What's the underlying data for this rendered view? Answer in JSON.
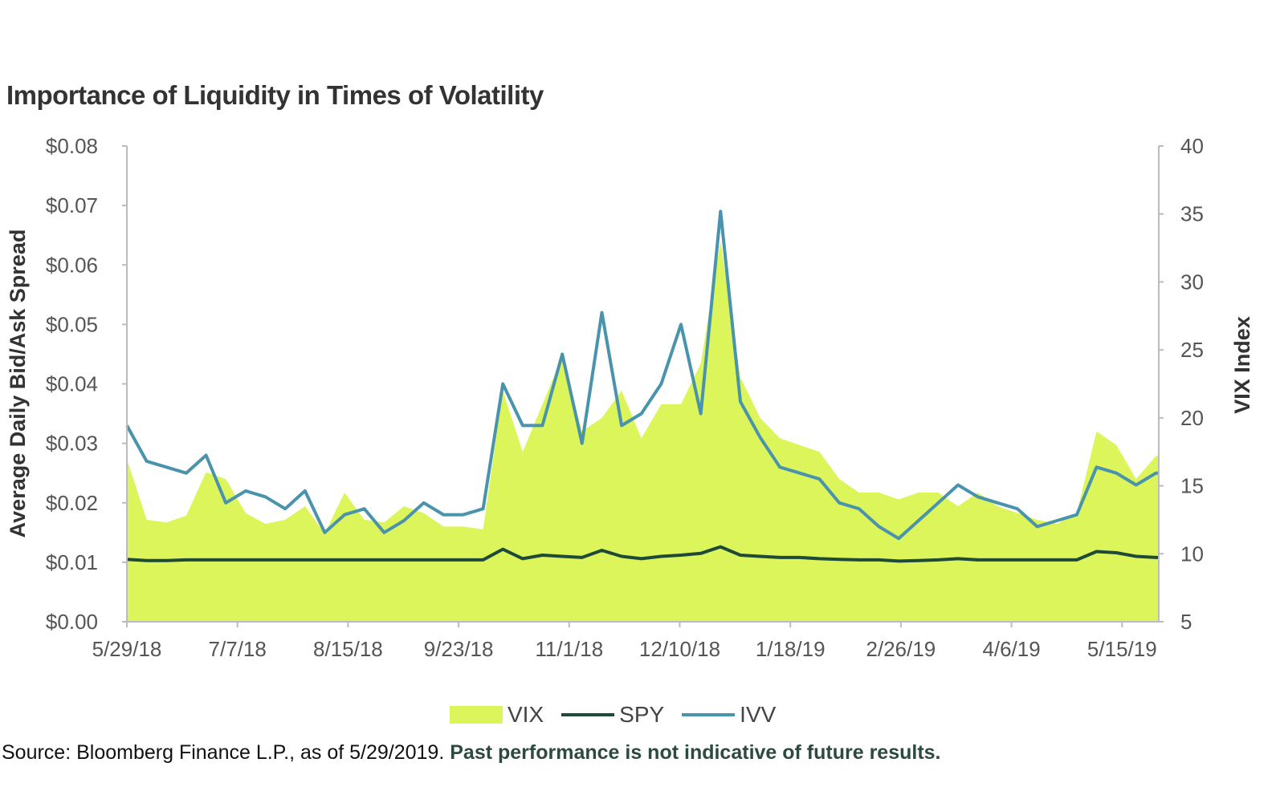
{
  "title": "Importance of Liquidity in Times of Volatility",
  "source": {
    "text": "Source: Bloomberg Finance L.P., as of 5/29/2019.",
    "disclaimer": "Past performance is not indicative of future results."
  },
  "chart_data": {
    "type": "line",
    "title": "Importance of Liquidity in Times of Volatility",
    "xlabel": "",
    "ylabel": "Average Daily Bid/Ask Spread",
    "y2label": "VIX Index",
    "ylim": [
      0,
      0.08
    ],
    "y2lim": [
      5,
      40
    ],
    "yticks": [
      "$0.00",
      "$0.01",
      "$0.02",
      "$0.03",
      "$0.04",
      "$0.05",
      "$0.06",
      "$0.07",
      "$0.08"
    ],
    "y2ticks": [
      "5",
      "10",
      "15",
      "20",
      "25",
      "30",
      "35",
      "40"
    ],
    "xticks": [
      "5/29/18",
      "7/7/18",
      "8/15/18",
      "9/23/18",
      "11/1/18",
      "12/10/18",
      "1/18/19",
      "2/26/19",
      "4/6/19",
      "5/15/19"
    ],
    "xrange": [
      "2018-05-29",
      "2019-05-29"
    ],
    "grid": false,
    "legend": "bottom",
    "x": [
      "2018-05-29",
      "2018-06-05",
      "2018-06-12",
      "2018-06-19",
      "2018-06-26",
      "2018-07-03",
      "2018-07-10",
      "2018-07-17",
      "2018-07-24",
      "2018-07-31",
      "2018-08-07",
      "2018-08-14",
      "2018-08-21",
      "2018-08-28",
      "2018-09-04",
      "2018-09-11",
      "2018-09-18",
      "2018-09-25",
      "2018-10-02",
      "2018-10-09",
      "2018-10-16",
      "2018-10-23",
      "2018-10-30",
      "2018-11-06",
      "2018-11-13",
      "2018-11-20",
      "2018-11-27",
      "2018-12-04",
      "2018-12-11",
      "2018-12-18",
      "2018-12-25",
      "2019-01-01",
      "2019-01-08",
      "2019-01-15",
      "2019-01-22",
      "2019-01-29",
      "2019-02-05",
      "2019-02-12",
      "2019-02-19",
      "2019-02-26",
      "2019-03-05",
      "2019-03-12",
      "2019-03-19",
      "2019-03-26",
      "2019-04-02",
      "2019-04-09",
      "2019-04-16",
      "2019-04-23",
      "2019-04-30",
      "2019-05-07",
      "2019-05-14",
      "2019-05-21",
      "2019-05-28"
    ],
    "series": [
      {
        "name": "VIX",
        "axis": "right",
        "kind": "area",
        "color": "#dcf55a",
        "values": [
          17.0,
          12.5,
          12.3,
          12.8,
          16.0,
          15.5,
          13.0,
          12.2,
          12.5,
          13.5,
          11.5,
          14.5,
          12.5,
          12.3,
          13.5,
          13.0,
          12.0,
          12.0,
          11.8,
          22.0,
          17.5,
          21.0,
          24.5,
          19.0,
          20.0,
          22.0,
          18.5,
          21.0,
          21.0,
          24.0,
          33.0,
          23.0,
          20.0,
          18.5,
          18.0,
          17.5,
          15.5,
          14.5,
          14.5,
          14.0,
          14.5,
          14.5,
          13.5,
          14.5,
          13.5,
          13.0,
          12.5,
          12.2,
          13.0,
          19.0,
          18.0,
          15.5,
          17.2
        ]
      },
      {
        "name": "SPY",
        "axis": "left",
        "kind": "line",
        "color": "#1f4a3a",
        "values": [
          0.0105,
          0.0103,
          0.0103,
          0.0104,
          0.0104,
          0.0104,
          0.0104,
          0.0104,
          0.0104,
          0.0104,
          0.0104,
          0.0104,
          0.0104,
          0.0104,
          0.0104,
          0.0104,
          0.0104,
          0.0104,
          0.0104,
          0.0122,
          0.0106,
          0.0112,
          0.011,
          0.0108,
          0.012,
          0.011,
          0.0106,
          0.011,
          0.0112,
          0.0115,
          0.0126,
          0.0112,
          0.011,
          0.0108,
          0.0108,
          0.0106,
          0.0105,
          0.0104,
          0.0104,
          0.0102,
          0.0103,
          0.0104,
          0.0106,
          0.0104,
          0.0104,
          0.0104,
          0.0104,
          0.0104,
          0.0104,
          0.0118,
          0.0116,
          0.011,
          0.0108
        ]
      },
      {
        "name": "IVV",
        "axis": "left",
        "kind": "line",
        "color": "#4a93ad",
        "values": [
          0.033,
          0.027,
          0.026,
          0.025,
          0.028,
          0.02,
          0.022,
          0.021,
          0.019,
          0.022,
          0.015,
          0.018,
          0.019,
          0.015,
          0.017,
          0.02,
          0.018,
          0.018,
          0.019,
          0.04,
          0.033,
          0.033,
          0.045,
          0.03,
          0.052,
          0.033,
          0.035,
          0.04,
          0.05,
          0.035,
          0.069,
          0.037,
          0.031,
          0.026,
          0.025,
          0.024,
          0.02,
          0.019,
          0.016,
          0.014,
          0.017,
          0.02,
          0.023,
          0.021,
          0.02,
          0.019,
          0.016,
          0.017,
          0.018,
          0.026,
          0.025,
          0.023,
          0.025
        ]
      }
    ]
  }
}
